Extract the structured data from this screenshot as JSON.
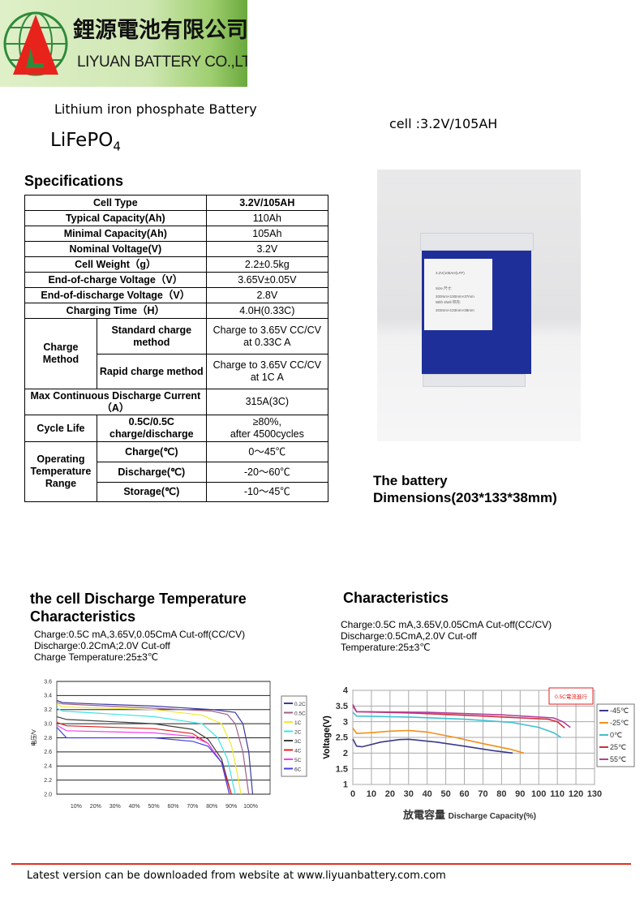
{
  "logo": {
    "company_cn": "鋰源電池有限公司",
    "company_en": "LIYUAN BATTERY CO.,LTD",
    "colors": {
      "triangle": "#e8231c",
      "globe": "#2f8a3a"
    }
  },
  "header": {
    "product_line": "Lithium iron phosphate  Battery",
    "chemistry_main": "LiFePO",
    "chemistry_sub": "4",
    "cell_label": "cell :3.2V/105AH"
  },
  "specs": {
    "title": "Specifications",
    "rows": [
      {
        "label": "Cell Type",
        "value": "3.2V/105AH"
      },
      {
        "label": "Typical Capacity(Ah)",
        "value": "110Ah"
      },
      {
        "label": "Minimal Capacity(Ah)",
        "value": "105Ah"
      },
      {
        "label": "Nominal Voltage(V)",
        "value": "3.2V"
      },
      {
        "label": "Cell Weight（g）",
        "value": "2.2±0.5kg"
      },
      {
        "label": "End-of-charge Voltage（V）",
        "value": "3.65V±0.05V"
      },
      {
        "label": "End-of-discharge  Voltage（V）",
        "value": "2.8V"
      },
      {
        "label": "Charging Time（H）",
        "value": "4.0H(0.33C)"
      }
    ],
    "charge_method": {
      "label": "Charge Method",
      "standard": {
        "label": "Standard charge method",
        "value": "Charge to 3.65V CC/CV at 0.33C A"
      },
      "rapid": {
        "label": "Rapid charge method",
        "value": "Charge to 3.65V CC/CV at 1C A"
      }
    },
    "max_discharge": {
      "label": "Max Continuous Discharge Current（A）",
      "value": "315A(3C)"
    },
    "cycle_life": {
      "label": "Cycle Life",
      "condition": "0.5C/0.5C charge/discharge",
      "value": "≥80%,\nafter 4500cycles"
    },
    "temperature": {
      "label": "Operating Temperature Range",
      "rows": [
        {
          "label": "Charge(℃)",
          "value": "0～45℃"
        },
        {
          "label": "Discharge(℃)",
          "value": "-20～60℃"
        },
        {
          "label": "Storage(℃)",
          "value": "-10～45℃"
        }
      ]
    }
  },
  "photo": {
    "label_lines": [
      "3.2V(105AH(LFP)",
      "Size 尺寸:",
      "200mm×130mm×37mm",
      "With shell 带壳:",
      "203mm×133mm×38mm"
    ],
    "colors": {
      "body": "#1f2f9a",
      "cap": "#e4e6ea"
    }
  },
  "dimensions": {
    "line1": "The battery",
    "line2": "Dimensions(203*133*38mm)"
  },
  "left_section": {
    "title_line1": "the cell Discharge Temperature",
    "title_line2": "Characteristics",
    "notes": [
      "Charge:0.5C mA,3.65V,0.05CmA Cut-off(CC/CV)",
      "Discharge:0.2CmA;2.0V Cut-off",
      "Charge Temperature:25±3℃"
    ]
  },
  "right_section": {
    "title": "Characteristics",
    "notes": [
      "Charge:0.5C mA,3.65V,0.05CmA Cut-off(CC/CV)",
      "Discharge:0.5CmA,2.0V Cut-off",
      "Temperature:25±3℃"
    ]
  },
  "chart_data": [
    {
      "type": "line",
      "title": "",
      "xlabel": "",
      "ylabel": "电压/V",
      "xlim": [
        0,
        110
      ],
      "ylim": [
        2.0,
        3.6
      ],
      "xticks": [
        "10%",
        "20%",
        "30%",
        "40%",
        "50%",
        "60%",
        "70%",
        "80%",
        "90%",
        "100%"
      ],
      "yticks": [
        "2.0",
        "2.2",
        "2.4",
        "2.6",
        "2.8",
        "3.0",
        "3.2",
        "3.4",
        "3.6"
      ],
      "grid": "horizontal",
      "legend": "right",
      "series": [
        {
          "name": "0.2C",
          "color": "#3a3aa0",
          "points": [
            [
              0,
              3.33
            ],
            [
              3,
              3.3
            ],
            [
              20,
              3.28
            ],
            [
              50,
              3.25
            ],
            [
              80,
              3.2
            ],
            [
              92,
              3.16
            ],
            [
              96,
              3.0
            ],
            [
              99,
              2.6
            ],
            [
              101,
              2.0
            ]
          ]
        },
        {
          "name": "0.5C",
          "color": "#a0608c",
          "points": [
            [
              0,
              3.3
            ],
            [
              3,
              3.28
            ],
            [
              50,
              3.22
            ],
            [
              80,
              3.18
            ],
            [
              88,
              3.13
            ],
            [
              92,
              3.0
            ],
            [
              96,
              2.6
            ],
            [
              99,
              2.0
            ]
          ]
        },
        {
          "name": "1C",
          "color": "#eeea30",
          "points": [
            [
              0,
              3.28
            ],
            [
              3,
              3.24
            ],
            [
              50,
              3.2
            ],
            [
              75,
              3.12
            ],
            [
              85,
              3.0
            ],
            [
              90,
              2.7
            ],
            [
              93,
              2.3
            ],
            [
              95,
              2.0
            ]
          ]
        },
        {
          "name": "2C",
          "color": "#40e4e4",
          "points": [
            [
              0,
              3.22
            ],
            [
              3,
              3.18
            ],
            [
              50,
              3.1
            ],
            [
              75,
              3.0
            ],
            [
              83,
              2.8
            ],
            [
              88,
              2.5
            ],
            [
              92,
              2.0
            ]
          ]
        },
        {
          "name": "3C",
          "color": "#404040",
          "points": [
            [
              0,
              3.1
            ],
            [
              5,
              3.06
            ],
            [
              50,
              3.0
            ],
            [
              70,
              2.92
            ],
            [
              78,
              2.78
            ],
            [
              85,
              2.5
            ],
            [
              90,
              2.0
            ]
          ]
        },
        {
          "name": "4C",
          "color": "#e02020",
          "points": [
            [
              0,
              3.02
            ],
            [
              5,
              2.97
            ],
            [
              50,
              2.93
            ],
            [
              70,
              2.86
            ],
            [
              78,
              2.72
            ],
            [
              85,
              2.45
            ],
            [
              90,
              2.0
            ]
          ]
        },
        {
          "name": "5C",
          "color": "#f040f0",
          "points": [
            [
              0,
              2.98
            ],
            [
              5,
              2.9
            ],
            [
              50,
              2.87
            ],
            [
              70,
              2.82
            ],
            [
              78,
              2.72
            ],
            [
              85,
              2.45
            ],
            [
              89,
              2.0
            ]
          ]
        },
        {
          "name": "6C",
          "color": "#4040e0",
          "points": [
            [
              0,
              2.95
            ],
            [
              5,
              2.8
            ],
            [
              50,
              2.8
            ],
            [
              70,
              2.75
            ],
            [
              78,
              2.68
            ],
            [
              85,
              2.45
            ],
            [
              89,
              2.0
            ]
          ]
        }
      ]
    },
    {
      "type": "line",
      "title": "",
      "xlabel_cn": "放電容量",
      "xlabel": "Discharge Capacity(%)",
      "ylabel": "Voltage(V)",
      "xlim": [
        0,
        130
      ],
      "ylim": [
        1,
        4
      ],
      "xticks": [
        "0",
        "10",
        "20",
        "30",
        "40",
        "50",
        "60",
        "70",
        "80",
        "90",
        "100",
        "110",
        "120",
        "130"
      ],
      "yticks": [
        "1",
        "1.5",
        "2",
        "2.5",
        "3",
        "3.5",
        "4"
      ],
      "grid": "both",
      "legend": "right",
      "annotation": "0.5C電流進行",
      "series": [
        {
          "name": "-45℃",
          "color": "#3a3a8a",
          "points": [
            [
              0,
              2.45
            ],
            [
              2,
              2.22
            ],
            [
              5,
              2.2
            ],
            [
              15,
              2.35
            ],
            [
              25,
              2.43
            ],
            [
              30,
              2.44
            ],
            [
              45,
              2.35
            ],
            [
              60,
              2.22
            ],
            [
              75,
              2.08
            ],
            [
              86,
              2.0
            ]
          ]
        },
        {
          "name": "-25℃",
          "color": "#f0901a",
          "points": [
            [
              0,
              2.8
            ],
            [
              2,
              2.63
            ],
            [
              10,
              2.65
            ],
            [
              20,
              2.7
            ],
            [
              30,
              2.72
            ],
            [
              40,
              2.67
            ],
            [
              55,
              2.5
            ],
            [
              70,
              2.3
            ],
            [
              85,
              2.12
            ],
            [
              92,
              2.0
            ]
          ]
        },
        {
          "name": "0℃",
          "color": "#40c0d0",
          "points": [
            [
              0,
              3.3
            ],
            [
              2,
              3.18
            ],
            [
              30,
              3.15
            ],
            [
              60,
              3.08
            ],
            [
              85,
              2.98
            ],
            [
              100,
              2.82
            ],
            [
              108,
              2.65
            ],
            [
              112,
              2.5
            ]
          ]
        },
        {
          "name": "25℃",
          "color": "#d03040",
          "points": [
            [
              0,
              3.5
            ],
            [
              2,
              3.32
            ],
            [
              30,
              3.28
            ],
            [
              70,
              3.18
            ],
            [
              105,
              3.08
            ],
            [
              110,
              3.0
            ],
            [
              114,
              2.8
            ]
          ]
        },
        {
          "name": "55℃",
          "color": "#b040a0",
          "points": [
            [
              0,
              3.55
            ],
            [
              2,
              3.32
            ],
            [
              40,
              3.3
            ],
            [
              80,
              3.22
            ],
            [
              108,
              3.12
            ],
            [
              113,
              3.0
            ],
            [
              117,
              2.82
            ]
          ]
        }
      ]
    }
  ],
  "footer": {
    "text": "Latest version can be downloaded from   website at www.liyuanbattery.com.com",
    "rule_color": "#e0301e"
  }
}
